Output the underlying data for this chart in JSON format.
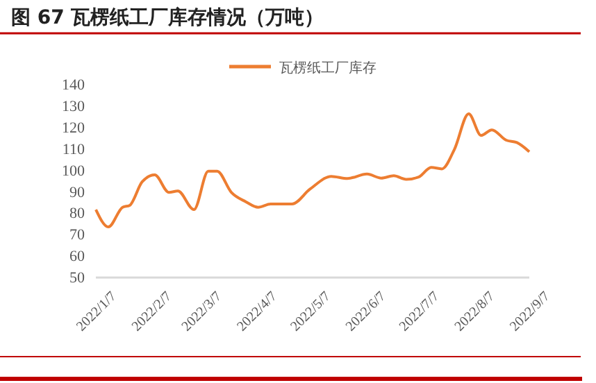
{
  "chart_data": {
    "type": "line",
    "title": "图 67  瓦楞纸工厂库存情况（万吨）",
    "x": [
      "2022-01-07",
      "2022-01-14",
      "2022-01-22",
      "2022-01-26",
      "2022-02-02",
      "2022-02-09",
      "2022-02-17",
      "2022-02-22",
      "2022-03-03",
      "2022-03-11",
      "2022-03-16",
      "2022-03-24",
      "2022-04-01",
      "2022-04-08",
      "2022-04-15",
      "2022-04-27",
      "2022-05-07",
      "2022-05-19",
      "2022-05-28",
      "2022-06-08",
      "2022-06-16",
      "2022-06-23",
      "2022-06-30",
      "2022-07-07",
      "2022-07-14",
      "2022-07-20",
      "2022-07-27",
      "2022-08-04",
      "2022-08-11",
      "2022-08-17",
      "2022-08-25",
      "2022-08-31",
      "2022-09-07"
    ],
    "series": [
      {
        "name": "瓦楞纸工厂库存",
        "color": "#ed7d31",
        "values": [
          81.7,
          73.6,
          82.8,
          83.7,
          94.7,
          97.9,
          89.7,
          90.4,
          81.7,
          99.6,
          99.6,
          89.7,
          85.4,
          82.8,
          84.3,
          84.3,
          91.2,
          97.2,
          96.2,
          98.3,
          96.4,
          97.5,
          95.8,
          96.9,
          101.4,
          100.7,
          109.8,
          126.4,
          116.3,
          118.9,
          114.1,
          113,
          108.7
        ]
      }
    ],
    "ylim": [
      50,
      140
    ],
    "yticks": [
      50,
      60,
      70,
      80,
      90,
      100,
      110,
      120,
      130,
      140
    ],
    "xlim": [
      "2022-01-07",
      "2022-09-07"
    ],
    "xticks": [
      {
        "value": "2022-01-07",
        "label": "2022/1/7"
      },
      {
        "value": "2022-02-07",
        "label": "2022/2/7"
      },
      {
        "value": "2022-03-07",
        "label": "2022/3/7"
      },
      {
        "value": "2022-04-07",
        "label": "2022/4/7"
      },
      {
        "value": "2022-05-07",
        "label": "2022/5/7"
      },
      {
        "value": "2022-06-07",
        "label": "2022/6/7"
      },
      {
        "value": "2022-07-07",
        "label": "2022/7/7"
      },
      {
        "value": "2022-08-07",
        "label": "2022/8/7"
      },
      {
        "value": "2022-09-07",
        "label": "2022/9/7"
      }
    ],
    "legend": "top",
    "grid": false,
    "marker": "none",
    "line_style": "solid"
  }
}
